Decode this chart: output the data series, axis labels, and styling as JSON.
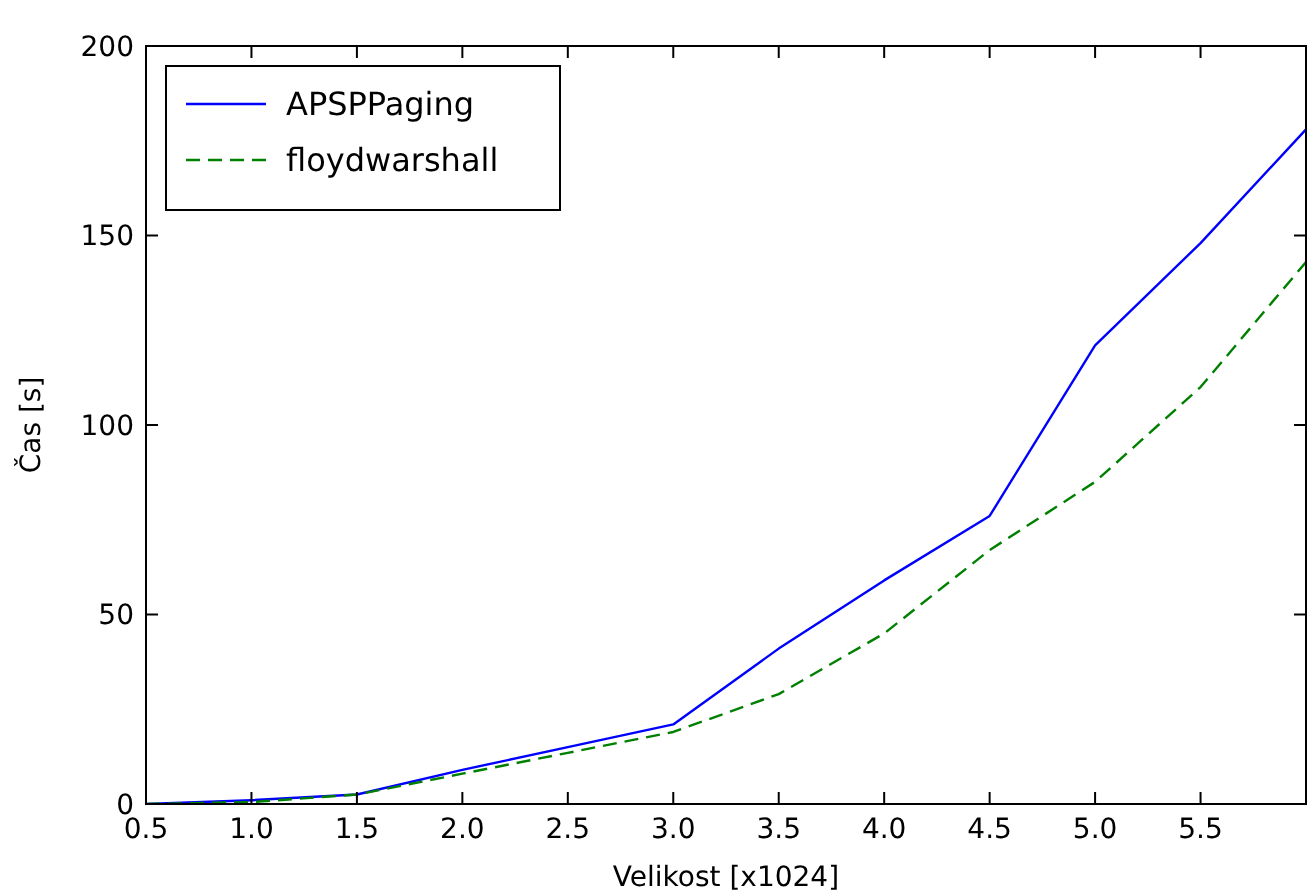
{
  "chart_data": {
    "type": "line",
    "xlabel": "Velikost [x1024]",
    "ylabel": "Čas [s]",
    "x": [
      0.5,
      1.0,
      1.5,
      2.0,
      2.5,
      3.0,
      3.5,
      4.0,
      4.5,
      5.0,
      5.5,
      6.0
    ],
    "series": [
      {
        "name": "APSPPaging",
        "color": "#0000ff",
        "line_style": "solid",
        "values": [
          0,
          1,
          2.5,
          9,
          15,
          21,
          41,
          59,
          76,
          121,
          148,
          178
        ]
      },
      {
        "name": "floydwarshall",
        "color": "#008000",
        "line_style": "dashed",
        "values": [
          0,
          0.5,
          2.5,
          8,
          13.5,
          19,
          29,
          45,
          67,
          85,
          110,
          143
        ]
      }
    ],
    "xlim": [
      0.5,
      6.0
    ],
    "xticks": [
      {
        "value": 0.5,
        "label": "0.5"
      },
      {
        "value": 1.0,
        "label": "1.0"
      },
      {
        "value": 1.5,
        "label": "1.5"
      },
      {
        "value": 2.0,
        "label": "2.0"
      },
      {
        "value": 2.5,
        "label": "2.5"
      },
      {
        "value": 3.0,
        "label": "3.0"
      },
      {
        "value": 3.5,
        "label": "3.5"
      },
      {
        "value": 4.0,
        "label": "4.0"
      },
      {
        "value": 4.5,
        "label": "4.5"
      },
      {
        "value": 5.0,
        "label": "5.0"
      },
      {
        "value": 5.5,
        "label": "5.5"
      }
    ],
    "ylim": [
      0,
      200
    ],
    "yticks": [
      0,
      50,
      100,
      150,
      200
    ],
    "grid": false,
    "legend": "top left",
    "marker": "none"
  }
}
